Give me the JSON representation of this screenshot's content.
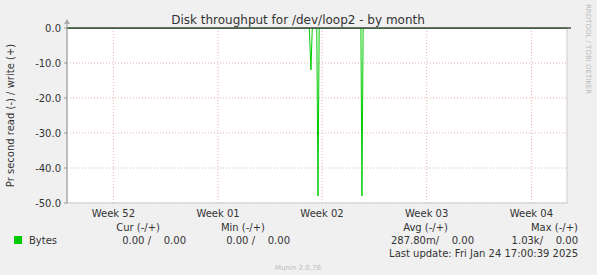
{
  "chart_data": {
    "type": "line",
    "title": "Disk throughput for /dev/loop2 - by month",
    "y_label": "Pr second read (-) / write (+)",
    "x": [
      0,
      16.2,
      16.31,
      16.4,
      16.7,
      16.78,
      16.86,
      19.65,
      19.72,
      19.8,
      33.43
    ],
    "series": [
      {
        "name": "Bytes",
        "color": "#00cc00",
        "values": [
          0,
          0,
          -12,
          0,
          0,
          -48,
          0,
          0,
          -48,
          0,
          0
        ]
      }
    ],
    "xlim": [
      0,
      33.43
    ],
    "xticks": [
      {
        "value": 3.1,
        "label": "Week 52"
      },
      {
        "value": 10.1,
        "label": "Week 01"
      },
      {
        "value": 17.05,
        "label": "Week 02"
      },
      {
        "value": 24.05,
        "label": "Week 03"
      },
      {
        "value": 31.05,
        "label": "Week 04"
      }
    ],
    "ylim": [
      -50,
      0
    ],
    "yticks": [
      {
        "value": 0,
        "label": "0.0"
      },
      {
        "value": -10,
        "label": "-10.0"
      },
      {
        "value": -20,
        "label": "-20.0"
      },
      {
        "value": -30,
        "label": "-30.0"
      },
      {
        "value": -40,
        "label": "-40.0"
      },
      {
        "value": -50,
        "label": "-50.0"
      }
    ],
    "grid": true,
    "annotations": [
      "Cur (-/+)",
      "Min (-/+)",
      "Avg (-/+)",
      "Max (-/+)",
      "0.00 /    0.00",
      "0.00 /    0.00",
      "287.80m/    0.00",
      "1.03k/    0.00",
      "Last update: Fri Jan 24 17:00:39 2025",
      "Munin 2.0.76",
      "RRDTOOL / TOBI OETIKER"
    ]
  }
}
